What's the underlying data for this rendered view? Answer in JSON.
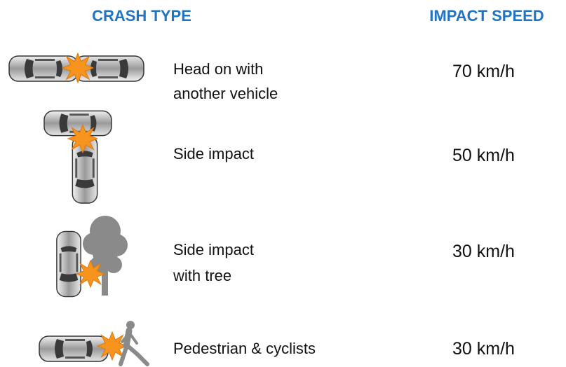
{
  "header": {
    "crash_type": "CRASH TYPE",
    "impact_speed": "IMPACT SPEED"
  },
  "rows": [
    {
      "description": [
        "Head on with",
        "another vehicle"
      ],
      "speed": "70 km/h"
    },
    {
      "description": [
        "Side impact"
      ],
      "speed": "50 km/h"
    },
    {
      "description": [
        "Side impact",
        "with tree"
      ],
      "speed": "30 km/h"
    },
    {
      "description": [
        "Pedestrian & cyclists"
      ],
      "speed": "30 km/h"
    }
  ]
}
